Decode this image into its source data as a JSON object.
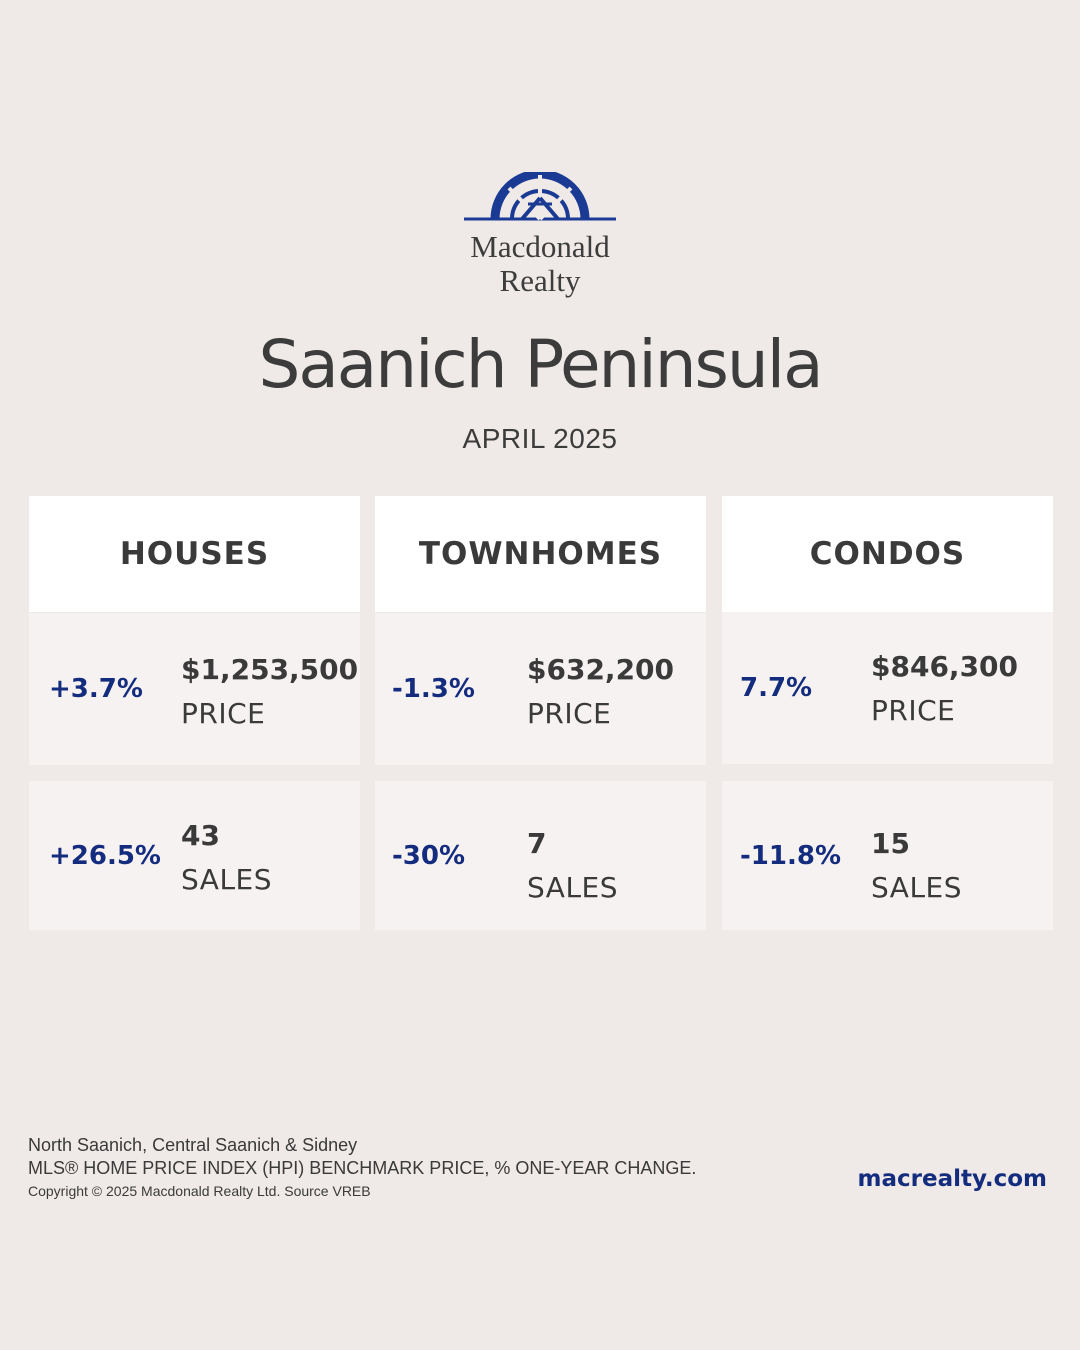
{
  "brand": {
    "name_line1": "Macdonald",
    "name_line2": "Realty",
    "color": "#1a3a94"
  },
  "header": {
    "title": "Saanich Peninsula",
    "subtitle": "APRIL 2025"
  },
  "accent_color": "#142c7e",
  "columns": [
    {
      "label": "HOUSES",
      "price": {
        "change": "+3.7%",
        "value": "$1,253,500",
        "label": "PRICE"
      },
      "sales": {
        "change": "+26.5%",
        "value": "43",
        "label": "SALES"
      }
    },
    {
      "label": "TOWNHOMES",
      "price": {
        "change": "-1.3%",
        "value": "$632,200",
        "label": "PRICE"
      },
      "sales": {
        "change": "-30%",
        "value": "7",
        "label": "SALES"
      }
    },
    {
      "label": "CONDOS",
      "price": {
        "change": "7.7%",
        "value": "$846,300",
        "label": "PRICE"
      },
      "sales": {
        "change": "-11.8%",
        "value": "15",
        "label": "SALES"
      }
    }
  ],
  "footer": {
    "areas": "North Saanich, Central Saanich & Sidney",
    "methodology": "MLS® HOME PRICE INDEX (HPI) BENCHMARK PRICE, % ONE-YEAR CHANGE.",
    "copyright": "Copyright © 2025 Macdonald Realty Ltd. Source VREB",
    "website": "macrealty.com"
  }
}
